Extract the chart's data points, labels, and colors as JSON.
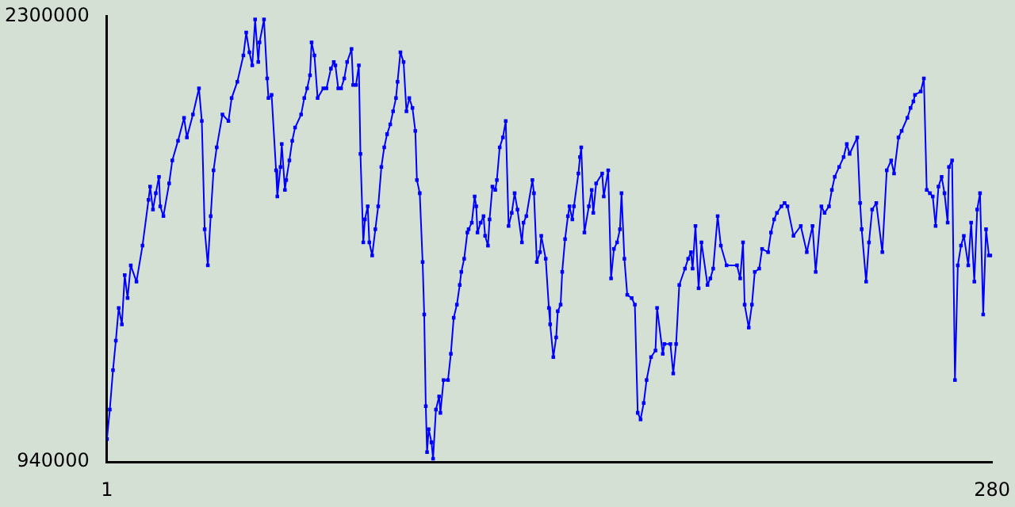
{
  "chart_data": {
    "type": "line",
    "marker": "square",
    "line_style": "solid",
    "grid": false,
    "legend": false,
    "xlim": [
      1,
      280
    ],
    "xticks": [
      1,
      280
    ],
    "ylim": [
      940000,
      2300000
    ],
    "yticks": [
      940000,
      2300000
    ],
    "series": [
      {
        "color": "#0000ff",
        "x": [
          1.0,
          1.9,
          2.9,
          3.8,
          4.7,
          5.7,
          6.6,
          7.5,
          8.5,
          10.3,
          12.2,
          14.1,
          14.6,
          15.5,
          16.4,
          17.4,
          17.8,
          18.8,
          20.6,
          21.6,
          23.4,
          25.3,
          26.2,
          28.1,
          30.0,
          30.9,
          31.8,
          32.8,
          33.7,
          34.6,
          35.6,
          37.4,
          39.3,
          40.3,
          42.1,
          44.0,
          44.9,
          45.9,
          46.8,
          47.7,
          48.7,
          49.1,
          50.5,
          51.5,
          51.9,
          52.9,
          54.3,
          54.7,
          55.7,
          56.1,
          57.1,
          57.5,
          58.5,
          59.4,
          60.3,
          62.2,
          63.2,
          64.1,
          65.0,
          65.5,
          66.4,
          67.4,
          69.2,
          70.2,
          71.6,
          72.5,
          73.0,
          73.9,
          74.8,
          75.8,
          76.7,
          78.1,
          78.6,
          79.5,
          80.4,
          80.9,
          81.8,
          82.3,
          83.2,
          83.7,
          84.6,
          85.6,
          86.5,
          87.5,
          88.4,
          89.3,
          90.3,
          91.2,
          92.1,
          92.6,
          93.5,
          94.5,
          95.4,
          96.3,
          97.3,
          98.2,
          98.7,
          99.6,
          100.5,
          101.0,
          101.5,
          101.9,
          102.4,
          103.3,
          103.8,
          104.7,
          105.7,
          106.1,
          107.1,
          108.5,
          109.4,
          110.3,
          111.3,
          112.2,
          112.7,
          113.6,
          114.6,
          115.0,
          116.0,
          116.9,
          117.4,
          117.8,
          118.8,
          119.7,
          120.2,
          121.1,
          121.6,
          122.5,
          123.4,
          123.9,
          124.8,
          125.8,
          126.7,
          127.6,
          128.6,
          129.5,
          130.4,
          131.8,
          132.3,
          133.2,
          135.1,
          135.6,
          136.5,
          137.5,
          137.9,
          139.3,
          140.3,
          140.7,
          141.7,
          142.6,
          143.1,
          144.0,
          144.5,
          145.4,
          146.3,
          146.8,
          147.7,
          148.2,
          149.6,
          150.1,
          150.5,
          151.5,
          152.9,
          153.8,
          154.3,
          155.2,
          157.1,
          157.6,
          159.0,
          159.9,
          160.8,
          161.8,
          162.7,
          163.2,
          164.1,
          165.0,
          166.4,
          167.4,
          168.3,
          169.2,
          170.2,
          171.1,
          172.5,
          173.9,
          174.4,
          176.2,
          176.7,
          178.6,
          179.5,
          180.4,
          181.4,
          183.2,
          184.2,
          185.1,
          185.6,
          186.5,
          187.5,
          188.4,
          190.3,
          191.2,
          192.1,
          193.5,
          194.5,
          196.3,
          199.6,
          200.6,
          201.5,
          202.0,
          203.3,
          204.3,
          205.2,
          206.6,
          207.5,
          209.4,
          210.3,
          211.3,
          212.2,
          213.6,
          214.6,
          215.5,
          217.4,
          219.7,
          221.6,
          223.4,
          224.4,
          226.2,
          227.2,
          228.6,
          229.5,
          230.4,
          231.8,
          233.2,
          234.2,
          235.1,
          237.5,
          238.4,
          238.9,
          240.3,
          241.2,
          242.2,
          243.5,
          245.4,
          246.8,
          248.2,
          249.1,
          250.5,
          251.5,
          253.3,
          254.3,
          255.2,
          255.7,
          257.5,
          258.5,
          259.4,
          260.4,
          261.3,
          262.2,
          263.1,
          264.1,
          265.0,
          266.0,
          266.4,
          267.4,
          268.3,
          269.2,
          270.2,
          271.1,
          272.5,
          273.4,
          274.4,
          275.3,
          276.2,
          277.2,
          278.1,
          279.0,
          280.0
        ],
        "values": [
          1010000,
          1100000,
          1220000,
          1310000,
          1410000,
          1360000,
          1510000,
          1440000,
          1540000,
          1490000,
          1600000,
          1740000,
          1780000,
          1710000,
          1760000,
          1810000,
          1720000,
          1690000,
          1790000,
          1860000,
          1920000,
          1990000,
          1930000,
          2000000,
          2080000,
          1980000,
          1650000,
          1540000,
          1690000,
          1830000,
          1900000,
          2000000,
          1980000,
          2050000,
          2100000,
          2180000,
          2250000,
          2190000,
          2150000,
          2290000,
          2160000,
          2220000,
          2290000,
          2110000,
          2050000,
          2060000,
          1830000,
          1750000,
          1840000,
          1910000,
          1770000,
          1800000,
          1860000,
          1920000,
          1960000,
          2000000,
          2050000,
          2080000,
          2120000,
          2220000,
          2180000,
          2050000,
          2080000,
          2080000,
          2140000,
          2160000,
          2150000,
          2080000,
          2080000,
          2110000,
          2160000,
          2200000,
          2090000,
          2090000,
          2150000,
          1880000,
          1610000,
          1680000,
          1720000,
          1610000,
          1570000,
          1650000,
          1720000,
          1840000,
          1900000,
          1940000,
          1970000,
          2010000,
          2050000,
          2100000,
          2190000,
          2160000,
          2010000,
          2050000,
          2020000,
          1950000,
          1800000,
          1760000,
          1550000,
          1390000,
          1110000,
          970000,
          1040000,
          1000000,
          950000,
          1100000,
          1140000,
          1090000,
          1190000,
          1190000,
          1270000,
          1380000,
          1420000,
          1480000,
          1520000,
          1560000,
          1640000,
          1650000,
          1670000,
          1750000,
          1720000,
          1640000,
          1670000,
          1690000,
          1630000,
          1600000,
          1680000,
          1780000,
          1770000,
          1800000,
          1900000,
          1930000,
          1980000,
          1660000,
          1700000,
          1760000,
          1710000,
          1610000,
          1670000,
          1690000,
          1800000,
          1760000,
          1550000,
          1580000,
          1630000,
          1560000,
          1410000,
          1360000,
          1260000,
          1320000,
          1400000,
          1420000,
          1520000,
          1620000,
          1690000,
          1720000,
          1680000,
          1720000,
          1820000,
          1870000,
          1900000,
          1640000,
          1720000,
          1770000,
          1700000,
          1790000,
          1820000,
          1750000,
          1830000,
          1500000,
          1590000,
          1610000,
          1650000,
          1760000,
          1560000,
          1450000,
          1440000,
          1420000,
          1090000,
          1070000,
          1120000,
          1190000,
          1260000,
          1280000,
          1410000,
          1270000,
          1300000,
          1300000,
          1210000,
          1300000,
          1480000,
          1530000,
          1560000,
          1580000,
          1530000,
          1660000,
          1470000,
          1610000,
          1480000,
          1500000,
          1530000,
          1690000,
          1600000,
          1540000,
          1540000,
          1500000,
          1610000,
          1420000,
          1350000,
          1420000,
          1520000,
          1530000,
          1590000,
          1580000,
          1640000,
          1680000,
          1700000,
          1720000,
          1730000,
          1720000,
          1630000,
          1660000,
          1580000,
          1660000,
          1520000,
          1720000,
          1700000,
          1720000,
          1770000,
          1810000,
          1840000,
          1870000,
          1910000,
          1880000,
          1930000,
          1730000,
          1650000,
          1490000,
          1610000,
          1710000,
          1730000,
          1580000,
          1830000,
          1860000,
          1820000,
          1930000,
          1950000,
          1990000,
          2020000,
          2040000,
          2060000,
          2070000,
          2110000,
          1770000,
          1760000,
          1750000,
          1660000,
          1780000,
          1810000,
          1760000,
          1670000,
          1840000,
          1860000,
          1190000,
          1540000,
          1600000,
          1630000,
          1540000,
          1670000,
          1490000,
          1710000,
          1760000,
          1390000,
          1650000,
          1570000,
          1570000
        ]
      }
    ]
  }
}
